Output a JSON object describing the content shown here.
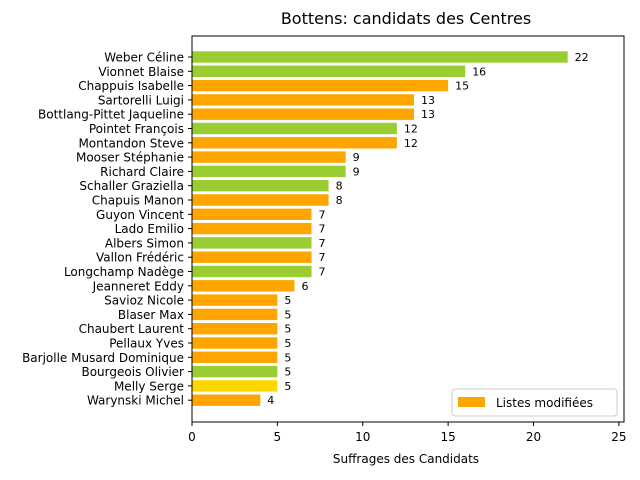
{
  "chart_data": {
    "type": "bar",
    "orientation": "horizontal",
    "title": "Bottens: candidats des Centres",
    "xlabel": "Suffrages des Candidats",
    "ylabel": "",
    "xlim": [
      0,
      25.3
    ],
    "xticks": [
      0,
      5,
      10,
      15,
      20,
      25
    ],
    "grid": false,
    "legend": {
      "position": "lower-right",
      "entries": [
        {
          "label": "Listes modifiées",
          "color": "#FFA500"
        }
      ]
    },
    "bars": [
      {
        "name": "Weber Céline",
        "value": 22,
        "color": "#9ACD32"
      },
      {
        "name": "Vionnet Blaise",
        "value": 16,
        "color": "#9ACD32"
      },
      {
        "name": "Chappuis Isabelle",
        "value": 15,
        "color": "#FFA500"
      },
      {
        "name": "Sartorelli Luigi",
        "value": 13,
        "color": "#FFA500"
      },
      {
        "name": "Bottlang-Pittet Jaqueline",
        "value": 13,
        "color": "#FFA500"
      },
      {
        "name": "Pointet François",
        "value": 12,
        "color": "#9ACD32"
      },
      {
        "name": "Montandon Steve",
        "value": 12,
        "color": "#FFA500"
      },
      {
        "name": "Mooser Stéphanie",
        "value": 9,
        "color": "#FFA500"
      },
      {
        "name": "Richard Claire",
        "value": 9,
        "color": "#9ACD32"
      },
      {
        "name": "Schaller Graziella",
        "value": 8,
        "color": "#9ACD32"
      },
      {
        "name": "Chapuis Manon",
        "value": 8,
        "color": "#FFA500"
      },
      {
        "name": "Guyon Vincent",
        "value": 7,
        "color": "#FFA500"
      },
      {
        "name": "Lado Emilio",
        "value": 7,
        "color": "#FFA500"
      },
      {
        "name": "Albers Simon",
        "value": 7,
        "color": "#9ACD32"
      },
      {
        "name": "Vallon Frédéric",
        "value": 7,
        "color": "#FFA500"
      },
      {
        "name": "Longchamp Nadège",
        "value": 7,
        "color": "#9ACD32"
      },
      {
        "name": "Jeanneret Eddy",
        "value": 6,
        "color": "#FFA500"
      },
      {
        "name": "Savioz Nicole",
        "value": 5,
        "color": "#FFA500"
      },
      {
        "name": "Blaser Max",
        "value": 5,
        "color": "#FFA500"
      },
      {
        "name": "Chaubert Laurent",
        "value": 5,
        "color": "#FFA500"
      },
      {
        "name": "Pellaux Yves",
        "value": 5,
        "color": "#FFA500"
      },
      {
        "name": "Barjolle Musard Dominique",
        "value": 5,
        "color": "#FFA500"
      },
      {
        "name": "Bourgeois Olivier",
        "value": 5,
        "color": "#9ACD32"
      },
      {
        "name": "Melly Serge",
        "value": 5,
        "color": "#FFD700"
      },
      {
        "name": "Warynski Michel",
        "value": 4,
        "color": "#FFA500"
      }
    ]
  }
}
